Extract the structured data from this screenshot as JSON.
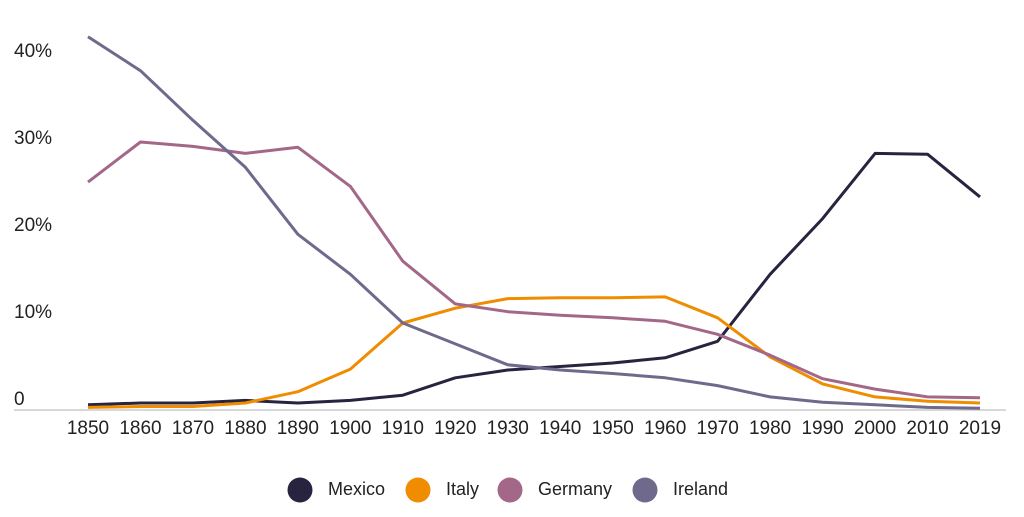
{
  "chart_data": {
    "type": "line",
    "title": "",
    "xlabel": "",
    "ylabel": "",
    "categories": [
      "1850",
      "1860",
      "1870",
      "1880",
      "1890",
      "1900",
      "1910",
      "1920",
      "1930",
      "1940",
      "1950",
      "1960",
      "1970",
      "1980",
      "1990",
      "2000",
      "2010",
      "2019"
    ],
    "ylim": [
      0,
      43
    ],
    "yticks": [
      0,
      10,
      20,
      30,
      40
    ],
    "ytick_labels": [
      "0",
      "10%",
      "20%",
      "30%",
      "40%"
    ],
    "grid": false,
    "legend_position": "bottom",
    "series": [
      {
        "name": "Mexico",
        "color": "#28233f",
        "values": [
          0.6,
          0.8,
          0.8,
          1.1,
          0.8,
          1.1,
          1.7,
          3.7,
          4.6,
          5.0,
          5.4,
          6.0,
          7.9,
          15.6,
          22.0,
          29.5,
          29.4,
          24.5
        ]
      },
      {
        "name": "Italy",
        "color": "#ef8c00",
        "values": [
          0.3,
          0.4,
          0.4,
          0.8,
          2.1,
          4.7,
          10.0,
          11.7,
          12.8,
          12.9,
          12.9,
          13.0,
          10.6,
          6.1,
          3.0,
          1.5,
          1.0,
          0.8
        ]
      },
      {
        "name": "Germany",
        "color": "#a36888",
        "values": [
          26.2,
          30.8,
          30.3,
          29.5,
          30.2,
          25.7,
          17.1,
          12.2,
          11.3,
          10.9,
          10.6,
          10.2,
          8.7,
          6.3,
          3.6,
          2.4,
          1.5,
          1.4
        ]
      },
      {
        "name": "Ireland",
        "color": "#6f6a8c",
        "values": [
          42.9,
          39.0,
          33.3,
          27.9,
          20.2,
          15.6,
          10.0,
          7.6,
          5.2,
          4.6,
          4.2,
          3.7,
          2.8,
          1.5,
          0.9,
          0.6,
          0.3,
          0.2
        ]
      }
    ]
  }
}
